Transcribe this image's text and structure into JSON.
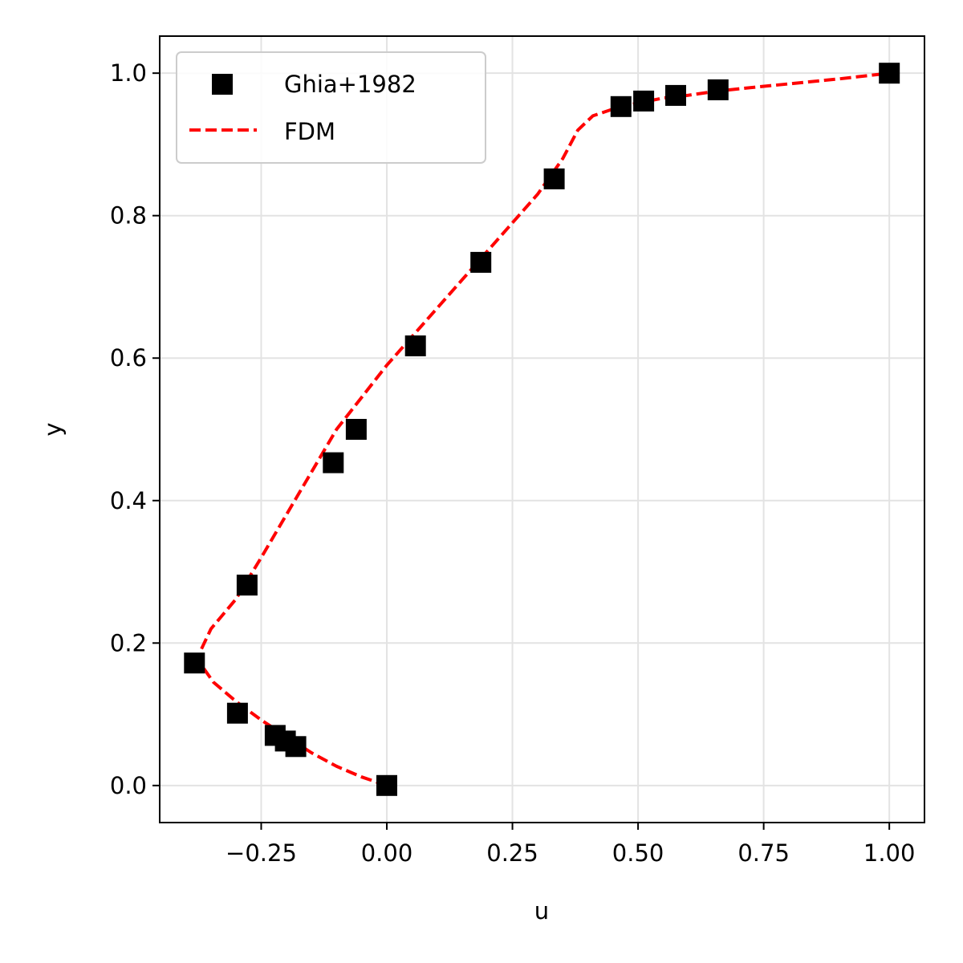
{
  "chart_data": {
    "type": "scatter",
    "xlabel": "u",
    "ylabel": "y",
    "xlim": [
      -0.452,
      1.07
    ],
    "ylim": [
      -0.052,
      1.052
    ],
    "xticks": [
      -0.25,
      0.0,
      0.25,
      0.5,
      0.75,
      1.0
    ],
    "xtick_labels": [
      "−0.25",
      "0.00",
      "0.25",
      "0.50",
      "0.75",
      "1.00"
    ],
    "yticks": [
      0.0,
      0.2,
      0.4,
      0.6,
      0.8,
      1.0
    ],
    "ytick_labels": [
      "0.0",
      "0.2",
      "0.4",
      "0.6",
      "0.8",
      "1.0"
    ],
    "grid": true,
    "legend_position": "top-left",
    "series": [
      {
        "name": "Ghia+1982",
        "kind": "scatter",
        "marker": "square",
        "color": "#000000",
        "points": [
          [
            1.0,
            1.0
          ],
          [
            0.65928,
            0.9766
          ],
          [
            0.57492,
            0.9688
          ],
          [
            0.51117,
            0.9609
          ],
          [
            0.46604,
            0.9531
          ],
          [
            0.33304,
            0.8516
          ],
          [
            0.18719,
            0.7344
          ],
          [
            0.05702,
            0.6172
          ],
          [
            -0.0608,
            0.5
          ],
          [
            -0.10648,
            0.4531
          ],
          [
            -0.27805,
            0.2813
          ],
          [
            -0.38289,
            0.1719
          ],
          [
            -0.2973,
            0.1016
          ],
          [
            -0.2222,
            0.0703
          ],
          [
            -0.20196,
            0.0625
          ],
          [
            -0.18109,
            0.0547
          ],
          [
            0.0,
            0.0
          ]
        ]
      },
      {
        "name": "FDM",
        "kind": "line",
        "style": "dashed",
        "color": "#ff0000",
        "points": [
          [
            0.0,
            0.0
          ],
          [
            -0.05,
            0.012
          ],
          [
            -0.1,
            0.027
          ],
          [
            -0.15,
            0.046
          ],
          [
            -0.2,
            0.069
          ],
          [
            -0.25,
            0.092
          ],
          [
            -0.3,
            0.118
          ],
          [
            -0.345,
            0.145
          ],
          [
            -0.37,
            0.17
          ],
          [
            -0.37,
            0.19
          ],
          [
            -0.35,
            0.22
          ],
          [
            -0.3,
            0.262
          ],
          [
            -0.25,
            0.32
          ],
          [
            -0.2,
            0.38
          ],
          [
            -0.15,
            0.44
          ],
          [
            -0.1,
            0.5
          ],
          [
            -0.05,
            0.545
          ],
          [
            0.0,
            0.59
          ],
          [
            0.05,
            0.63
          ],
          [
            0.1,
            0.67
          ],
          [
            0.15,
            0.71
          ],
          [
            0.2,
            0.75
          ],
          [
            0.25,
            0.79
          ],
          [
            0.3,
            0.83
          ],
          [
            0.35,
            0.88
          ],
          [
            0.38,
            0.92
          ],
          [
            0.41,
            0.94
          ],
          [
            0.46,
            0.952
          ],
          [
            0.5,
            0.958
          ],
          [
            0.55,
            0.965
          ],
          [
            0.6,
            0.969
          ],
          [
            0.65,
            0.974
          ],
          [
            0.7,
            0.978
          ],
          [
            0.8,
            0.985
          ],
          [
            0.9,
            0.992
          ],
          [
            1.0,
            1.0
          ]
        ]
      }
    ]
  }
}
